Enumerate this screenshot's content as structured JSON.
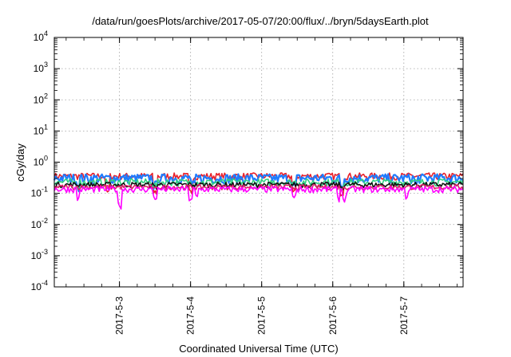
{
  "chart_data": {
    "type": "line",
    "title": "/data/run/goesPlots/archive/2017-05-07/20:00/flux/../bryn/5daysEarth.plot",
    "xlabel": "Coordinated Universal Time (UTC)",
    "ylabel": "cGy/day",
    "yscale": "log",
    "ylim": [
      0.0001,
      10000
    ],
    "y_ticks": [
      {
        "base": "10",
        "exp": "-4",
        "value": 0.0001
      },
      {
        "base": "10",
        "exp": "-3",
        "value": 0.001
      },
      {
        "base": "10",
        "exp": "-2",
        "value": 0.01
      },
      {
        "base": "10",
        "exp": "-1",
        "value": 0.1
      },
      {
        "base": "10",
        "exp": "0",
        "value": 1
      },
      {
        "base": "10",
        "exp": "1",
        "value": 10
      },
      {
        "base": "10",
        "exp": "2",
        "value": 100
      },
      {
        "base": "10",
        "exp": "3",
        "value": 1000
      },
      {
        "base": "10",
        "exp": "4",
        "value": 10000
      }
    ],
    "xlim": [
      "2017-05-02 02:00",
      "2017-05-07 20:00"
    ],
    "x_ticks": [
      {
        "label": "2017-5-3",
        "value": "2017-05-03 00:00"
      },
      {
        "label": "2017-5-4",
        "value": "2017-05-04 00:00"
      },
      {
        "label": "2017-5-5",
        "value": "2017-05-05 00:00"
      },
      {
        "label": "2017-5-6",
        "value": "2017-05-06 00:00"
      },
      {
        "label": "2017-5-7",
        "value": "2017-05-07 00:00"
      }
    ],
    "grid": true,
    "legend": "none",
    "series": [
      {
        "color": "#e8202a",
        "base": 0.36,
        "noise": 0.06,
        "dips": [
          [
            "2017-05-02 20:00",
            0.3
          ],
          [
            "2017-05-03 12:00",
            0.3
          ],
          [
            "2017-05-04 00:00",
            0.3
          ],
          [
            "2017-05-05 11:00",
            0.3
          ],
          [
            "2017-05-06 03:00",
            0.3
          ]
        ]
      },
      {
        "color": "#1e7cff",
        "base": 0.31,
        "noise": 0.07,
        "dips": [
          [
            "2017-05-02 10:00",
            0.55
          ],
          [
            "2017-05-03 12:00",
            0.6
          ],
          [
            "2017-05-04 01:00",
            0.6
          ],
          [
            "2017-05-05 11:00",
            0.55
          ],
          [
            "2017-05-06 03:00",
            0.55
          ],
          [
            "2017-05-07 04:00",
            0.6
          ]
        ]
      },
      {
        "color": "#30d080",
        "base": 0.23,
        "noise": 0.04,
        "dips": [
          [
            "2017-05-02 10:00",
            0.75
          ],
          [
            "2017-05-03 12:00",
            0.8
          ],
          [
            "2017-05-06 03:00",
            0.75
          ]
        ]
      },
      {
        "color": "#111111",
        "base": 0.19,
        "noise": 0.025,
        "dips": [
          [
            "2017-05-03 12:00",
            0.85
          ],
          [
            "2017-05-06 03:00",
            0.85
          ]
        ]
      },
      {
        "color": "#e0206a",
        "base": 0.16,
        "noise": 0.02,
        "dips": [
          [
            "2017-05-03 12:00",
            0.85
          ],
          [
            "2017-05-06 03:00",
            0.85
          ]
        ]
      },
      {
        "color": "#ff00ff",
        "base": 0.135,
        "noise": 0.02,
        "dips": [
          [
            "2017-05-02 10:00",
            0.5
          ],
          [
            "2017-05-03 00:00",
            0.3
          ],
          [
            "2017-05-03 12:00",
            0.55
          ],
          [
            "2017-05-04 00:00",
            0.5
          ],
          [
            "2017-05-04 02:00",
            0.55
          ],
          [
            "2017-05-05 11:00",
            0.55
          ],
          [
            "2017-05-06 02:00",
            0.5
          ],
          [
            "2017-05-06 04:00",
            0.5
          ],
          [
            "2017-05-07 01:00",
            0.6
          ]
        ]
      }
    ]
  }
}
